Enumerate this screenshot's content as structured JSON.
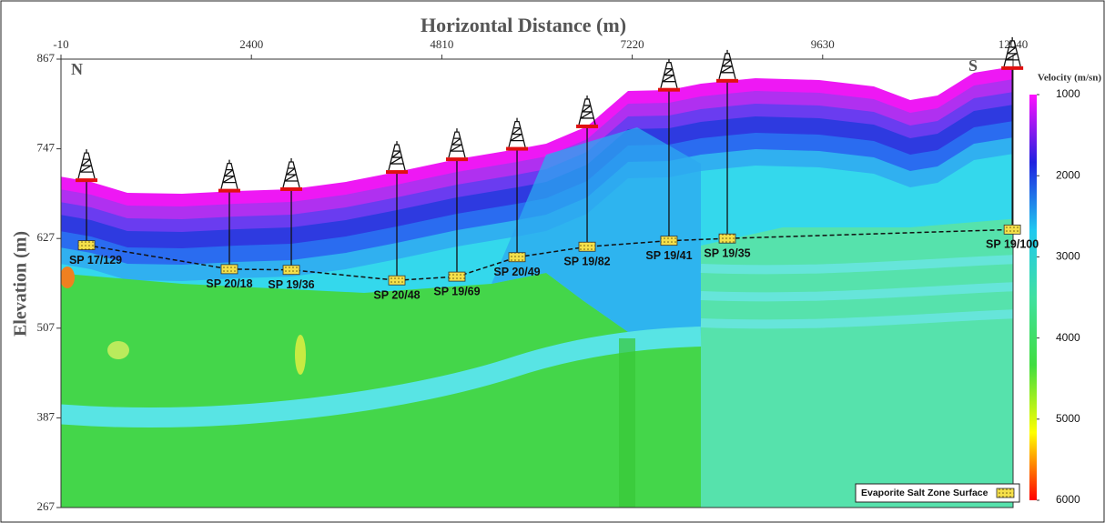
{
  "chart_data": {
    "type": "velocity-section",
    "xlabel": "Horizontal Distance (m)",
    "ylabel": "Elevation (m)",
    "xlim": [
      -10,
      12040
    ],
    "xticks": [
      -10,
      2400,
      4810,
      7220,
      9630,
      12040
    ],
    "ylim": [
      267,
      867
    ],
    "yticks": [
      267,
      387,
      507,
      627,
      747,
      867
    ],
    "directions": {
      "north": "N",
      "south": "S"
    },
    "colorbar": {
      "label": "Velocity (m/sn)",
      "lim": [
        1000,
        6000
      ],
      "ticks": [
        1000,
        2000,
        3000,
        4000,
        5000,
        6000
      ],
      "colors": [
        "#ff10ff",
        "#2020e0",
        "#20c8f0",
        "#40e0a0",
        "#40dd40",
        "#ffff00",
        "#ff0000"
      ]
    },
    "salt_legend": "Evaporite Salt Zone Surface",
    "stations": [
      {
        "name": "SP 17/129",
        "x": 313,
        "ground": 705,
        "salt": 618
      },
      {
        "name": "SP 20/18",
        "x": 2121,
        "ground": 691,
        "salt": 586
      },
      {
        "name": "SP 19/36",
        "x": 2905,
        "ground": 693,
        "salt": 585
      },
      {
        "name": "SP 20/48",
        "x": 4241,
        "ground": 716,
        "salt": 571
      },
      {
        "name": "SP 19/69",
        "x": 5001,
        "ground": 733,
        "salt": 576
      },
      {
        "name": "SP 20/49",
        "x": 5762,
        "ground": 747,
        "salt": 602
      },
      {
        "name": "SP 19/82",
        "x": 6649,
        "ground": 777,
        "salt": 616
      },
      {
        "name": "SP 19/41",
        "x": 7685,
        "ground": 826,
        "salt": 624
      },
      {
        "name": "SP 19/35",
        "x": 8423,
        "ground": 838,
        "salt": 627
      },
      {
        "name": "SP 19/100",
        "x": 12030,
        "ground": 855,
        "salt": 639
      }
    ]
  }
}
